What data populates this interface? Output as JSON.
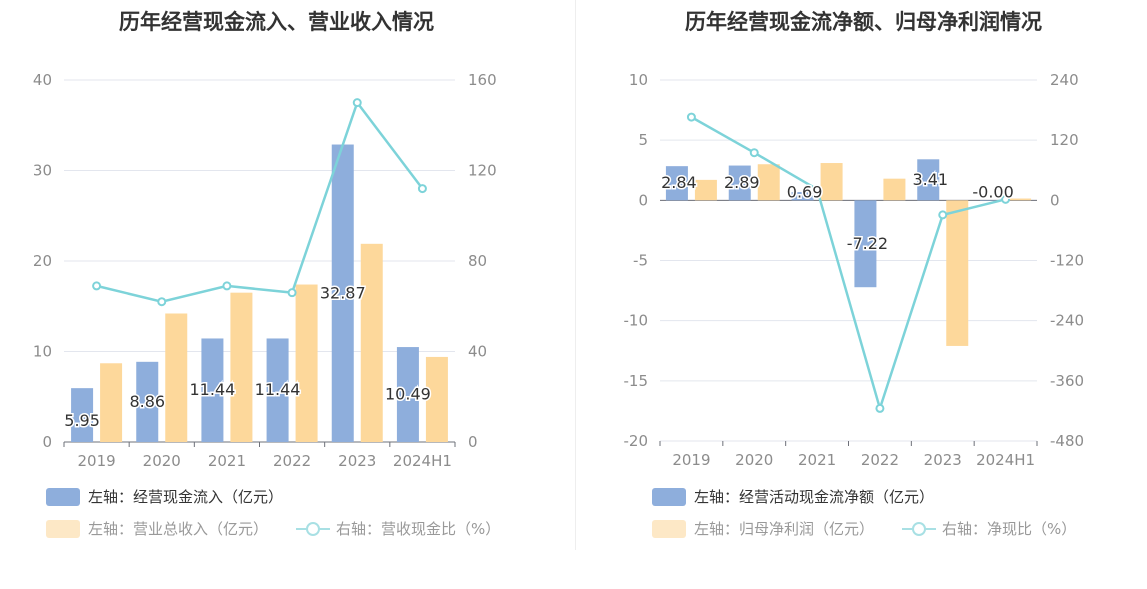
{
  "chart_data": [
    {
      "type": "bar",
      "title": "历年经营现金流入、营业收入情况",
      "categories": [
        "2019",
        "2020",
        "2021",
        "2022",
        "2023",
        "2024H1"
      ],
      "left_axis": {
        "min": 0,
        "max": 40,
        "ticks": [
          "0",
          "10",
          "20",
          "30",
          "40"
        ]
      },
      "right_axis": {
        "min": 0,
        "max": 160,
        "ticks": [
          "0",
          "40",
          "80",
          "120",
          "160"
        ]
      },
      "series": [
        {
          "name": "左轴：经营现金流入（亿元）",
          "axis": "left",
          "kind": "bar",
          "color": "#8eaedc",
          "values": [
            5.95,
            8.86,
            11.44,
            11.44,
            32.87,
            10.49
          ],
          "labels": [
            "5.95",
            "8.86",
            "11.44",
            "11.44",
            "32.87",
            "10.49"
          ]
        },
        {
          "name": "左轴：营业总收入（亿元）",
          "axis": "left",
          "kind": "bar",
          "color": "#fdd89b",
          "values": [
            8.7,
            14.2,
            16.5,
            17.4,
            21.9,
            9.4
          ]
        },
        {
          "name": "右轴：营收现金比（%）",
          "axis": "right",
          "kind": "line",
          "color": "#7dd3d9",
          "values": [
            69,
            62,
            69,
            66,
            150,
            112
          ]
        }
      ]
    },
    {
      "type": "bar",
      "title": "历年经营现金流净额、归母净利润情况",
      "categories": [
        "2019",
        "2020",
        "2021",
        "2022",
        "2023",
        "2024H1"
      ],
      "left_axis": {
        "min": -20,
        "max": 10,
        "ticks": [
          "-20",
          "-15",
          "-10",
          "-5",
          "0",
          "5",
          "10"
        ]
      },
      "right_axis": {
        "min": -480,
        "max": 240,
        "ticks": [
          "-480",
          "-360",
          "-240",
          "-120",
          "0",
          "120",
          "240"
        ]
      },
      "series": [
        {
          "name": "左轴：经营活动现金流净额（亿元）",
          "axis": "left",
          "kind": "bar",
          "color": "#8eaedc",
          "values": [
            2.84,
            2.89,
            0.69,
            -7.22,
            3.41,
            -0.0
          ],
          "labels": [
            "2.84",
            "2.89",
            "0.69",
            "-7.22",
            "3.41",
            "-0.00"
          ]
        },
        {
          "name": "左轴：归母净利润（亿元）",
          "axis": "left",
          "kind": "bar",
          "color": "#fdd89b",
          "values": [
            1.7,
            3.0,
            3.1,
            1.8,
            -12.1,
            0.15
          ]
        },
        {
          "name": "右轴：净现比（%）",
          "axis": "right",
          "kind": "line",
          "color": "#7dd3d9",
          "values": [
            166,
            95,
            22,
            -415,
            -29,
            2
          ]
        }
      ]
    }
  ]
}
